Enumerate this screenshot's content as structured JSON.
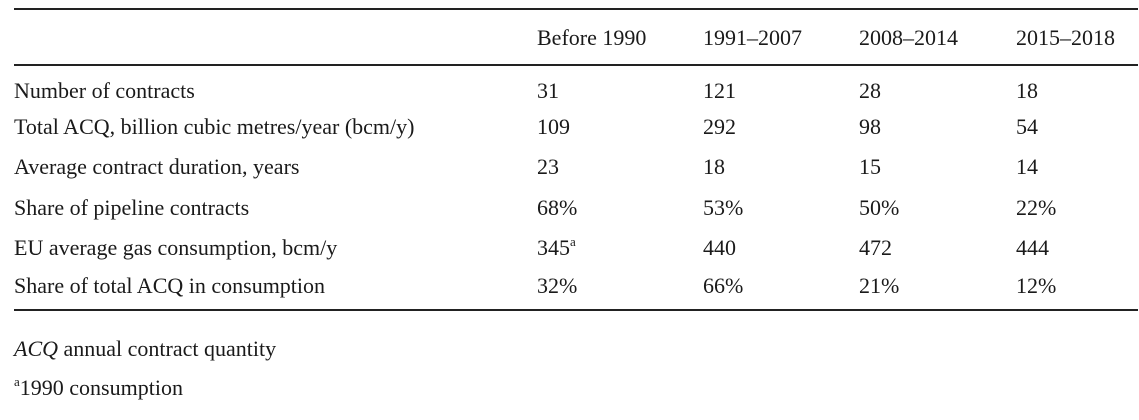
{
  "table": {
    "columns": [
      "",
      "Before 1990",
      "1991–2007",
      "2008–2014",
      "2015–2018"
    ],
    "rows": [
      {
        "label": "Number of contracts",
        "values": [
          "31",
          "121",
          "28",
          "18"
        ]
      },
      {
        "label": "Total ACQ, billion cubic metres/year (bcm/y)",
        "values": [
          "109",
          "292",
          "98",
          "54"
        ]
      },
      {
        "label": "Average contract duration, years",
        "values": [
          "23",
          "18",
          "15",
          "14"
        ]
      },
      {
        "label": "Share of pipeline contracts",
        "values": [
          "68%",
          "53%",
          "50%",
          "22%"
        ]
      },
      {
        "label": "EU average gas consumption, bcm/y",
        "values": [
          "345",
          "440",
          "472",
          "444"
        ],
        "first_value_sup": "a"
      },
      {
        "label": "Share of total ACQ in consumption",
        "values": [
          "32%",
          "66%",
          "21%",
          "12%"
        ]
      }
    ]
  },
  "notes": {
    "abbr_term": "ACQ",
    "abbr_text": " annual contract quantity",
    "footnote_mark": "a",
    "footnote_text": "1990 consumption"
  }
}
